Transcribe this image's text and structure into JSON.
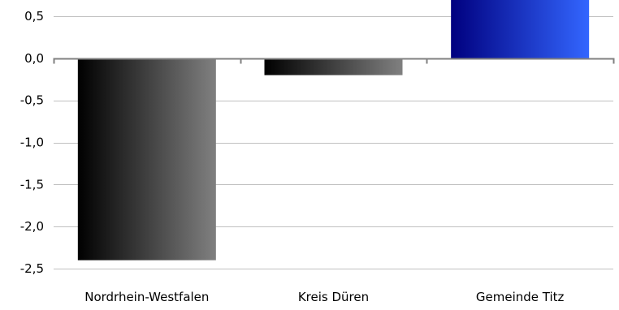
{
  "chart_data": {
    "type": "bar",
    "categories": [
      "Nordrhein-Westfalen",
      "Kreis Düren",
      "Gemeinde Titz"
    ],
    "values": [
      -2.4,
      -0.2,
      0.7
    ],
    "ylim": [
      -2.5,
      0.5
    ],
    "yticks": [
      0.5,
      0.0,
      -0.5,
      -1.0,
      -1.5,
      -2.0,
      -2.5
    ],
    "ytick_labels": [
      "0,5",
      "0,0",
      "-0,5",
      "-1,0",
      "-1,5",
      "-2,0",
      "-2,5"
    ],
    "title": "",
    "xlabel": "",
    "ylabel": "",
    "grid": true,
    "legend": "none",
    "colors": {
      "bar_gradients": [
        [
          "#000000",
          "#808080"
        ],
        [
          "#000000",
          "#808080"
        ],
        [
          "#00007f",
          "#3366ff"
        ]
      ],
      "grid": "#c0c0c0",
      "axis": "#808080"
    }
  }
}
